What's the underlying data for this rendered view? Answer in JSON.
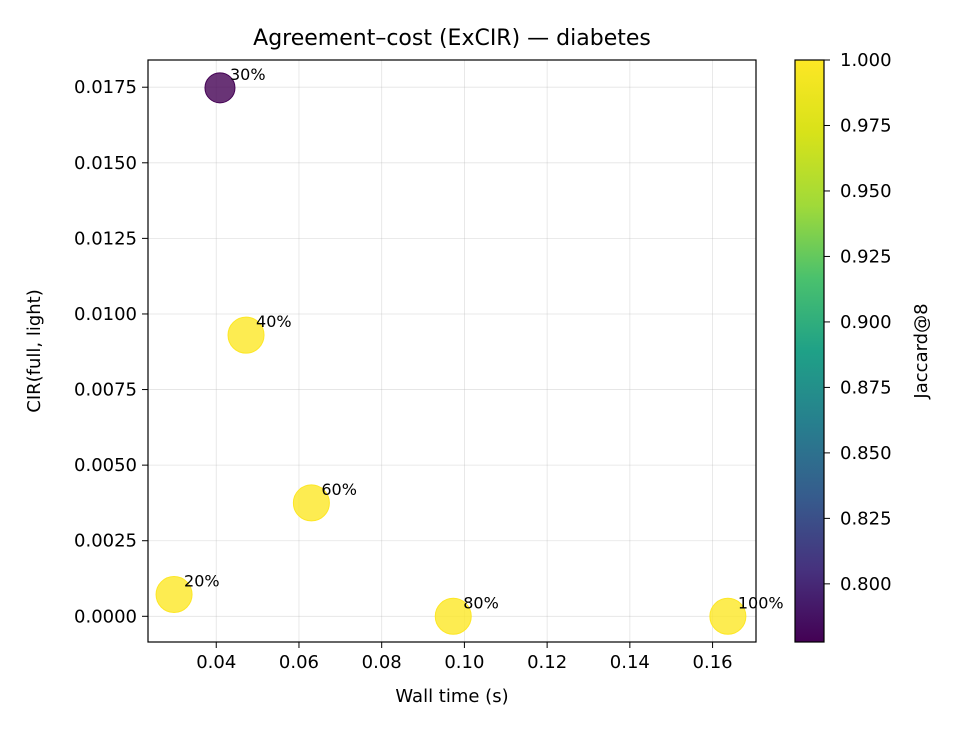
{
  "chart_data": {
    "type": "scatter",
    "title": "Agreement–cost (ExCIR) — diabetes",
    "xlabel": "Wall time (s)",
    "ylabel": "CIR(full, light)",
    "xlim": [
      0.0235,
      0.1705
    ],
    "ylim": [
      -0.00085,
      0.0184
    ],
    "xticks": [
      0.04,
      0.06,
      0.08,
      0.1,
      0.12,
      0.14,
      0.16
    ],
    "xtick_labels": [
      "0.04",
      "0.06",
      "0.08",
      "0.10",
      "0.12",
      "0.14",
      "0.16"
    ],
    "yticks": [
      0.0,
      0.0025,
      0.005,
      0.0075,
      0.01,
      0.0125,
      0.015,
      0.0175
    ],
    "ytick_labels": [
      "0.0000",
      "0.0025",
      "0.0050",
      "0.0075",
      "0.0100",
      "0.0125",
      "0.0150",
      "0.0175"
    ],
    "grid": true,
    "points": [
      {
        "label": "20%",
        "x": 0.0298,
        "y": 0.00072,
        "jaccard": 1.0
      },
      {
        "label": "30%",
        "x": 0.0409,
        "y": 0.01748,
        "jaccard": 0.778
      },
      {
        "label": "40%",
        "x": 0.0472,
        "y": 0.0093,
        "jaccard": 1.0
      },
      {
        "label": "60%",
        "x": 0.063,
        "y": 0.00375,
        "jaccard": 1.0
      },
      {
        "label": "80%",
        "x": 0.0973,
        "y": 0.0,
        "jaccard": 1.0
      },
      {
        "label": "100%",
        "x": 0.1637,
        "y": 0.0,
        "jaccard": 1.0
      }
    ],
    "colorbar": {
      "label": "Jaccard@8",
      "range": [
        0.7778,
        1.0
      ],
      "ticks": [
        0.8,
        0.825,
        0.85,
        0.875,
        0.9,
        0.925,
        0.95,
        0.975,
        1.0
      ],
      "tick_labels": [
        "0.800",
        "0.825",
        "0.850",
        "0.875",
        "0.900",
        "0.925",
        "0.950",
        "0.975",
        "1.000"
      ],
      "colormap": "viridis"
    }
  }
}
